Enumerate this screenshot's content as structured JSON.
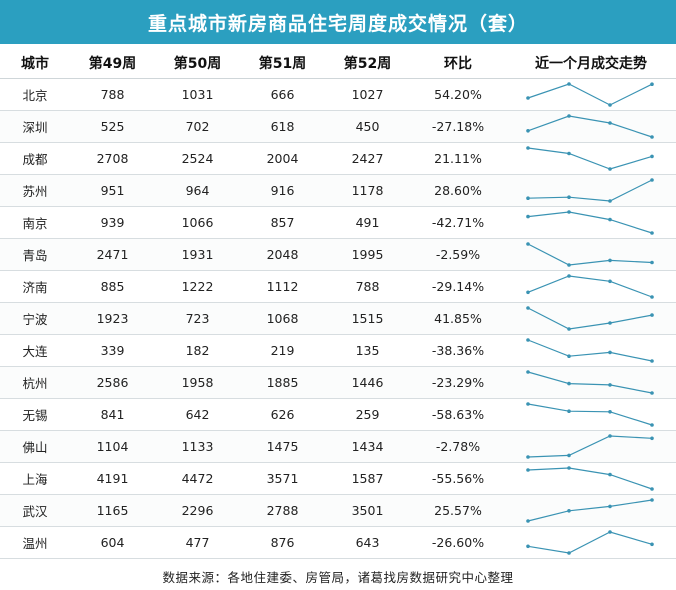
{
  "title": "重点城市新房商品住宅周度成交情况（套）",
  "footer": "数据来源：各地住建委、房管局，诸葛找房数据研究中心整理",
  "colors": {
    "header_bg": "#2b9fc0",
    "spark_line": "#3a93b3"
  },
  "chart_data": {
    "type": "table",
    "columns": [
      "城市",
      "第49周",
      "第50周",
      "第51周",
      "第52周",
      "环比",
      "近一个月成交走势"
    ],
    "rows": [
      {
        "city": "北京",
        "w49": 788,
        "w50": 1031,
        "w51": 666,
        "w52": 1027,
        "change": "54.20%"
      },
      {
        "city": "深圳",
        "w49": 525,
        "w50": 702,
        "w51": 618,
        "w52": 450,
        "change": "-27.18%"
      },
      {
        "city": "成都",
        "w49": 2708,
        "w50": 2524,
        "w51": 2004,
        "w52": 2427,
        "change": "21.11%"
      },
      {
        "city": "苏州",
        "w49": 951,
        "w50": 964,
        "w51": 916,
        "w52": 1178,
        "change": "28.60%"
      },
      {
        "city": "南京",
        "w49": 939,
        "w50": 1066,
        "w51": 857,
        "w52": 491,
        "change": "-42.71%"
      },
      {
        "city": "青岛",
        "w49": 2471,
        "w50": 1931,
        "w51": 2048,
        "w52": 1995,
        "change": "-2.59%"
      },
      {
        "city": "济南",
        "w49": 885,
        "w50": 1222,
        "w51": 1112,
        "w52": 788,
        "change": "-29.14%"
      },
      {
        "city": "宁波",
        "w49": 1923,
        "w50": 723,
        "w51": 1068,
        "w52": 1515,
        "change": "41.85%"
      },
      {
        "city": "大连",
        "w49": 339,
        "w50": 182,
        "w51": 219,
        "w52": 135,
        "change": "-38.36%"
      },
      {
        "city": "杭州",
        "w49": 2586,
        "w50": 1958,
        "w51": 1885,
        "w52": 1446,
        "change": "-23.29%"
      },
      {
        "city": "无锡",
        "w49": 841,
        "w50": 642,
        "w51": 626,
        "w52": 259,
        "change": "-58.63%"
      },
      {
        "city": "佛山",
        "w49": 1104,
        "w50": 1133,
        "w51": 1475,
        "w52": 1434,
        "change": "-2.78%"
      },
      {
        "city": "上海",
        "w49": 4191,
        "w50": 4472,
        "w51": 3571,
        "w52": 1587,
        "change": "-55.56%"
      },
      {
        "city": "武汉",
        "w49": 1165,
        "w50": 2296,
        "w51": 2788,
        "w52": 3501,
        "change": "25.57%"
      },
      {
        "city": "温州",
        "w49": 604,
        "w50": 477,
        "w51": 876,
        "w52": 643,
        "change": "-26.60%"
      }
    ]
  }
}
